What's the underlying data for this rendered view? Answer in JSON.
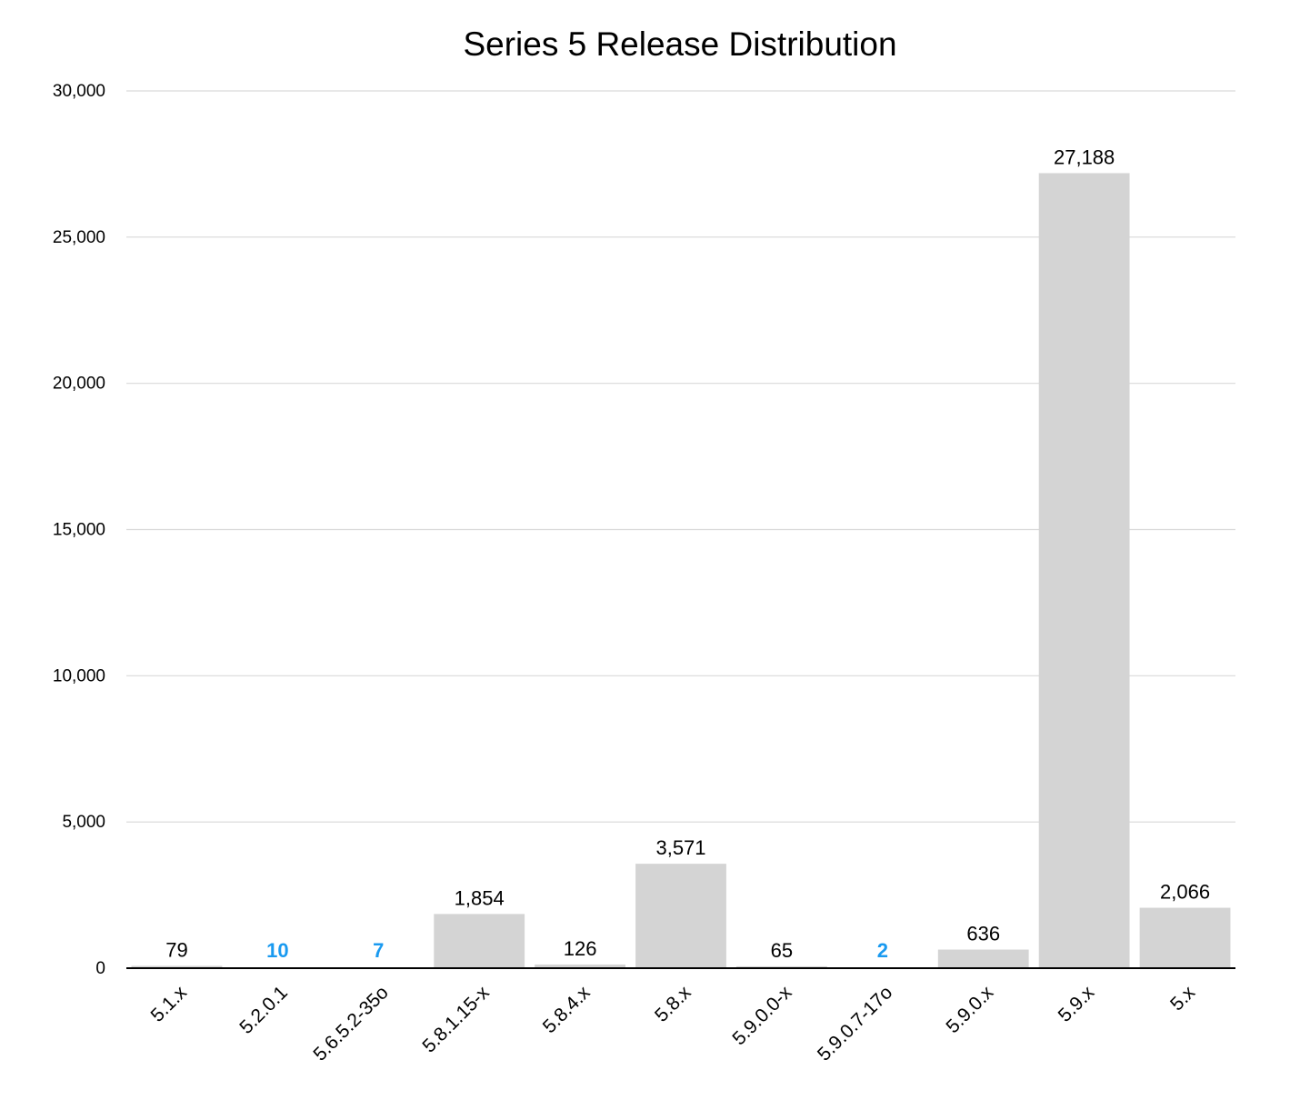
{
  "chart_data": {
    "type": "bar",
    "title": "Series 5 Release Distribution",
    "xlabel": "",
    "ylabel": "",
    "categories": [
      "5.1.x",
      "5.2.0.1",
      "5.6.5.2-35o",
      "5.8.1.15-x",
      "5.8.4.x",
      "5.8.x",
      "5.9.0.0-x",
      "5.9.0.7-17o",
      "5.9.0.x",
      "5.9.x",
      "5.x"
    ],
    "values": [
      79,
      10,
      7,
      1854,
      126,
      3571,
      65,
      2,
      636,
      27188,
      2066
    ],
    "value_labels": [
      "79",
      "10",
      "7",
      "1,854",
      "126",
      "3,571",
      "65",
      "2",
      "636",
      "27,188",
      "2,066"
    ],
    "highlighted_labels": [
      false,
      true,
      true,
      false,
      false,
      false,
      false,
      true,
      false,
      false,
      false
    ],
    "ylim": [
      0,
      30000
    ],
    "yticks": [
      0,
      5000,
      10000,
      15000,
      20000,
      25000,
      30000
    ],
    "ytick_labels": [
      "0",
      "5,000",
      "10,000",
      "15,000",
      "20,000",
      "25,000",
      "30,000"
    ],
    "grid": true,
    "legend": "none",
    "colors": {
      "bar": "#d4d4d4",
      "grid": "#d9d9d9",
      "axis": "#000000",
      "text": "#000000",
      "highlight_label": "#1a9af0"
    }
  }
}
